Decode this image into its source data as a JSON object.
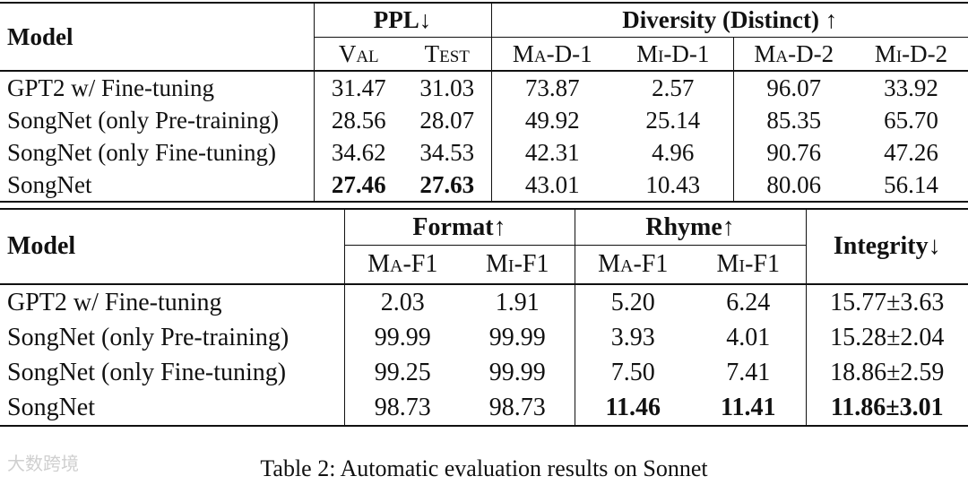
{
  "table1": {
    "model_header": "Model",
    "ppl_header": "PPL↓",
    "diversity_header": "Diversity (Distinct) ↑",
    "subheaders": [
      "Val",
      "Test",
      "Ma-D-1",
      "Mi-D-1",
      "Ma-D-2",
      "Mi-D-2"
    ],
    "rows": [
      {
        "model": "GPT2 w/ Fine-tuning",
        "values": [
          "31.47",
          "31.03",
          "73.87",
          "2.57",
          "96.07",
          "33.92"
        ]
      },
      {
        "model": "SongNet (only Pre-training)",
        "values": [
          "28.56",
          "28.07",
          "49.92",
          "25.14",
          "85.35",
          "65.70"
        ]
      },
      {
        "model": "SongNet (only Fine-tuning)",
        "values": [
          "34.62",
          "34.53",
          "42.31",
          "4.96",
          "90.76",
          "47.26"
        ]
      },
      {
        "model": "SongNet",
        "values": [
          "27.46",
          "27.63",
          "43.01",
          "10.43",
          "80.06",
          "56.14"
        ]
      }
    ]
  },
  "table2": {
    "model_header": "Model",
    "format_header": "Format↑",
    "rhyme_header": "Rhyme↑",
    "integrity_header": "Integrity↓",
    "subheaders": [
      "Ma-F1",
      "Mi-F1",
      "Ma-F1",
      "Mi-F1"
    ],
    "rows": [
      {
        "model": "GPT2 w/ Fine-tuning",
        "values": [
          "2.03",
          "1.91",
          "5.20",
          "6.24",
          "15.77±3.63"
        ]
      },
      {
        "model": "SongNet (only Pre-training)",
        "values": [
          "99.99",
          "99.99",
          "3.93",
          "4.01",
          "15.28±2.04"
        ]
      },
      {
        "model": "SongNet (only Fine-tuning)",
        "values": [
          "99.25",
          "99.99",
          "7.50",
          "7.41",
          "18.86±2.59"
        ]
      },
      {
        "model": "SongNet",
        "values": [
          "98.73",
          "98.73",
          "11.46",
          "11.41",
          "11.86±3.01"
        ]
      }
    ]
  },
  "caption": "Table 2: Automatic evaluation results on Sonnet",
  "watermark": "大数跨境"
}
